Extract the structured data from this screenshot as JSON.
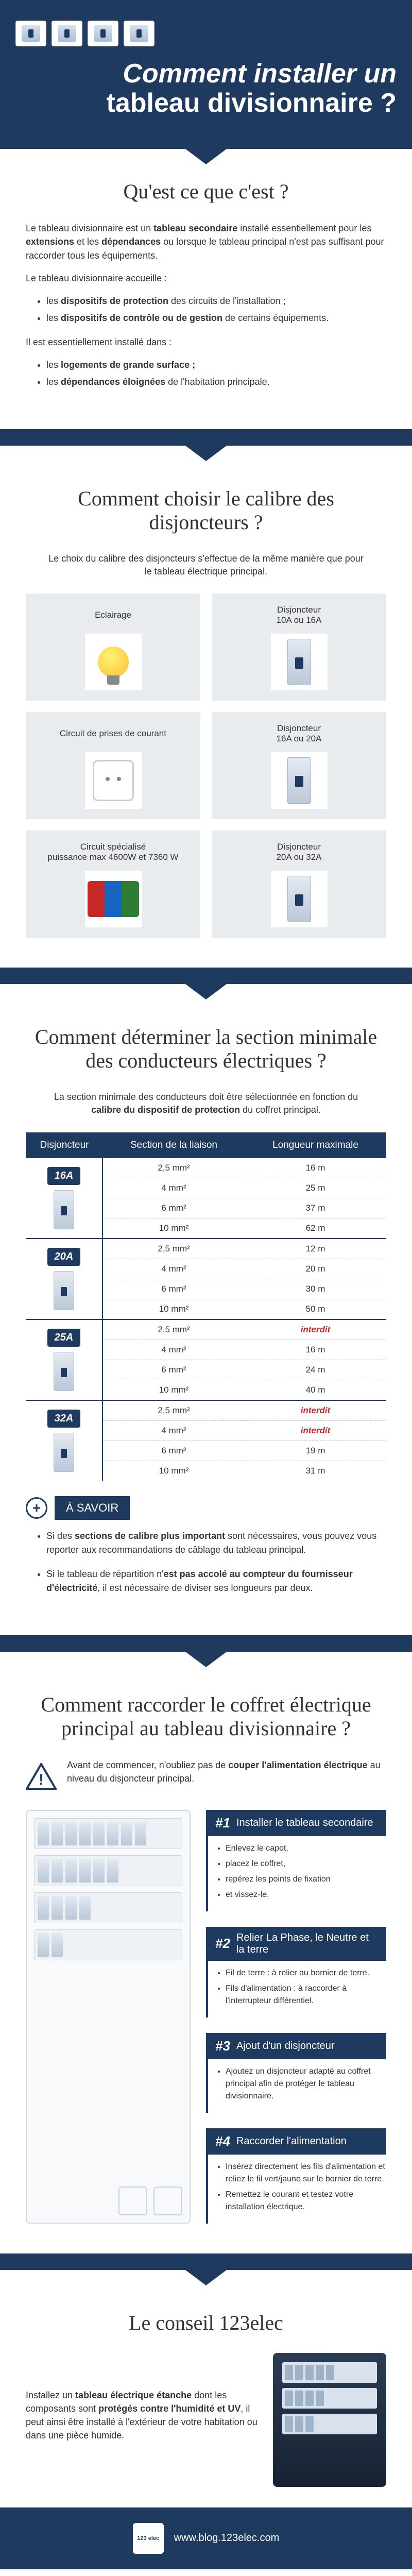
{
  "colors": {
    "brand": "#1e3a5f",
    "gridline": "#bbbbbb",
    "card_bg": "#e8ecef",
    "error": "#c62828"
  },
  "header": {
    "title_line1": "Comment installer un",
    "title_line2": "tableau divisionnaire ?"
  },
  "s1": {
    "heading": "Qu'est ce que c'est ?",
    "p1_a": "Le tableau divisionnaire est un ",
    "p1_b": "tableau secondaire",
    "p1_c": " installé essentiellement pour les ",
    "p1_d": "extensions",
    "p1_e": " et les ",
    "p1_f": "dépendances",
    "p1_g": " ou lorsque le tableau principal n'est pas suffisant pour raccorder tous les équipements.",
    "p2": "Le tableau divisionnaire accueille :",
    "li1_a": "les ",
    "li1_b": "dispositifs de protection",
    "li1_c": " des circuits de l'installation ;",
    "li2_a": "les ",
    "li2_b": "dispositifs de contrôle ou de gestion",
    "li2_c": " de certains équipements.",
    "p3": "Il est essentiellement installé dans :",
    "li3_a": "les ",
    "li3_b": "logements de grande surface ;",
    "li4_a": "les ",
    "li4_b": "dépendances éloignées",
    "li4_c": " de l'habitation principale."
  },
  "s2": {
    "heading": "Comment choisir le calibre des disjoncteurs ?",
    "lead": "Le choix du calibre des disjoncteurs s'effectue de la même manière que pour le tableau électrique principal.",
    "rows": [
      {
        "left": "Eclairage",
        "right": "Disjoncteur\n10A ou 16A"
      },
      {
        "left": "Circuit de prises de courant",
        "right": "Disjoncteur\n16A ou 20A"
      },
      {
        "left": "Circuit spécialisé\npuissance max 4600W et 7360 W",
        "right": "Disjoncteur\n20A ou 32A"
      }
    ]
  },
  "s3": {
    "heading": "Comment déterminer la section minimale des conducteurs électriques ?",
    "lead": "La section minimale des conducteurs doit être sélectionnée en fonction du calibre du dispositif de protection du coffret principal.",
    "cols": [
      "Disjoncteur",
      "Section de la liaison",
      "Longueur maximale"
    ],
    "groups": [
      {
        "amp": "16A",
        "rows": [
          {
            "s": "2,5 mm²",
            "l": "16 m"
          },
          {
            "s": "4 mm²",
            "l": "25 m"
          },
          {
            "s": "6 mm²",
            "l": "37 m"
          },
          {
            "s": "10 mm²",
            "l": "62 m"
          }
        ]
      },
      {
        "amp": "20A",
        "rows": [
          {
            "s": "2,5 mm²",
            "l": "12 m"
          },
          {
            "s": "4 mm²",
            "l": "20 m"
          },
          {
            "s": "6 mm²",
            "l": "30 m"
          },
          {
            "s": "10 mm²",
            "l": "50 m"
          }
        ]
      },
      {
        "amp": "25A",
        "rows": [
          {
            "s": "2,5 mm²",
            "l": "interdit",
            "interdit": true
          },
          {
            "s": "4 mm²",
            "l": "16 m"
          },
          {
            "s": "6 mm²",
            "l": "24 m"
          },
          {
            "s": "10 mm²",
            "l": "40 m"
          }
        ]
      },
      {
        "amp": "32A",
        "rows": [
          {
            "s": "2,5 mm²",
            "l": "interdit",
            "interdit": true
          },
          {
            "s": "4 mm²",
            "l": "interdit",
            "interdit": true
          },
          {
            "s": "6 mm²",
            "l": "19 m"
          },
          {
            "s": "10 mm²",
            "l": "31 m"
          }
        ]
      }
    ],
    "asavoir": "À SAVOIR",
    "note1_a": "Si des ",
    "note1_b": "sections de calibre plus important",
    "note1_c": " sont nécessaires, vous pouvez vous reporter aux recommandations de câblage du tableau principal.",
    "note2_a": "Si le tableau de répartition n'",
    "note2_b": "est pas accolé au compteur du fournisseur d'électricité",
    "note2_c": ", il est nécessaire de diviser ses longueurs par deux."
  },
  "s4": {
    "heading": "Comment raccorder le coffret électrique principal au tableau divisionnaire ?",
    "warn_a": "Avant de commencer, n'oubliez pas de ",
    "warn_b": "couper l'alimentation électrique",
    "warn_c": " au niveau du disjoncteur principal.",
    "steps": [
      {
        "num": "1",
        "title": "Installer le tableau secondaire",
        "items": [
          "Enlevez le capot,",
          "placez le coffret,",
          "repérez les points de fixation",
          "et vissez-le."
        ]
      },
      {
        "num": "2",
        "title": "Relier La Phase, le Neutre et la terre",
        "items": [
          "Fil de terre : à relier au bornier de terre.",
          "Fils d'alimentation : à raccorder à l'interrupteur différentiel."
        ]
      },
      {
        "num": "3",
        "title": "Ajout d'un disjoncteur",
        "items": [
          "Ajoutez un disjoncteur adapté au coffret principal afin de protéger le tableau divisionnaire."
        ]
      },
      {
        "num": "4",
        "title": "Raccorder l'alimentation",
        "items": [
          "Insérez directement les fils d'alimentation et reliez le fil vert/jaune sur le bornier de terre.",
          "Remettez le courant et testez votre installation électrique."
        ]
      }
    ]
  },
  "s5": {
    "heading": "Le conseil 123elec",
    "p_a": "Installez un ",
    "p_b": "tableau électrique étanche",
    "p_c": " dont les composants sont ",
    "p_d": "protégés contre l'humidité et UV",
    "p_e": ", il peut ainsi être installé à l'extérieur de votre habitation ou dans une pièce humide."
  },
  "footer": {
    "logo": "123 elec",
    "url": "www.blog.123elec.com"
  }
}
